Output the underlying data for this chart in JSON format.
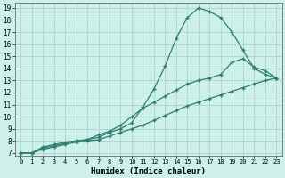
{
  "xlabel": "Humidex (Indice chaleur)",
  "background_color": "#cdf0eb",
  "grid_color": "#aad4ce",
  "line_color": "#2e7d6e",
  "xlim": [
    -0.5,
    23.5
  ],
  "ylim": [
    6.8,
    19.4
  ],
  "xticks": [
    0,
    1,
    2,
    3,
    4,
    5,
    6,
    7,
    8,
    9,
    10,
    11,
    12,
    13,
    14,
    15,
    16,
    17,
    18,
    19,
    20,
    21,
    22,
    23
  ],
  "yticks": [
    7,
    8,
    9,
    10,
    11,
    12,
    13,
    14,
    15,
    16,
    17,
    18,
    19
  ],
  "line1_x": [
    0,
    1,
    2,
    3,
    4,
    5,
    6,
    7,
    8,
    9,
    10,
    11,
    12,
    13,
    14,
    15,
    16,
    17,
    18,
    19,
    20,
    21,
    22,
    23
  ],
  "line1_y": [
    7,
    7,
    7.5,
    7.7,
    7.9,
    8.0,
    8.1,
    8.3,
    8.7,
    9.0,
    9.5,
    10.8,
    12.3,
    14.2,
    16.5,
    18.2,
    19.0,
    18.7,
    18.2,
    17.0,
    15.5,
    14.0,
    13.5,
    13.2
  ],
  "line2_x": [
    0,
    1,
    2,
    3,
    4,
    5,
    6,
    7,
    8,
    9,
    10,
    11,
    12,
    13,
    14,
    15,
    16,
    17,
    18,
    19,
    20,
    21,
    22,
    23
  ],
  "line2_y": [
    7,
    7,
    7.4,
    7.6,
    7.8,
    8.0,
    8.1,
    8.5,
    8.8,
    9.3,
    10.0,
    10.7,
    11.2,
    11.7,
    12.2,
    12.7,
    13.0,
    13.2,
    13.5,
    14.5,
    14.8,
    14.1,
    13.8,
    13.2
  ],
  "line3_x": [
    0,
    1,
    2,
    3,
    4,
    5,
    6,
    7,
    8,
    9,
    10,
    11,
    12,
    13,
    14,
    15,
    16,
    17,
    18,
    19,
    20,
    21,
    22,
    23
  ],
  "line3_y": [
    7,
    7,
    7.3,
    7.5,
    7.7,
    7.9,
    8.0,
    8.1,
    8.4,
    8.7,
    9.0,
    9.3,
    9.7,
    10.1,
    10.5,
    10.9,
    11.2,
    11.5,
    11.8,
    12.1,
    12.4,
    12.7,
    13.0,
    13.2
  ]
}
